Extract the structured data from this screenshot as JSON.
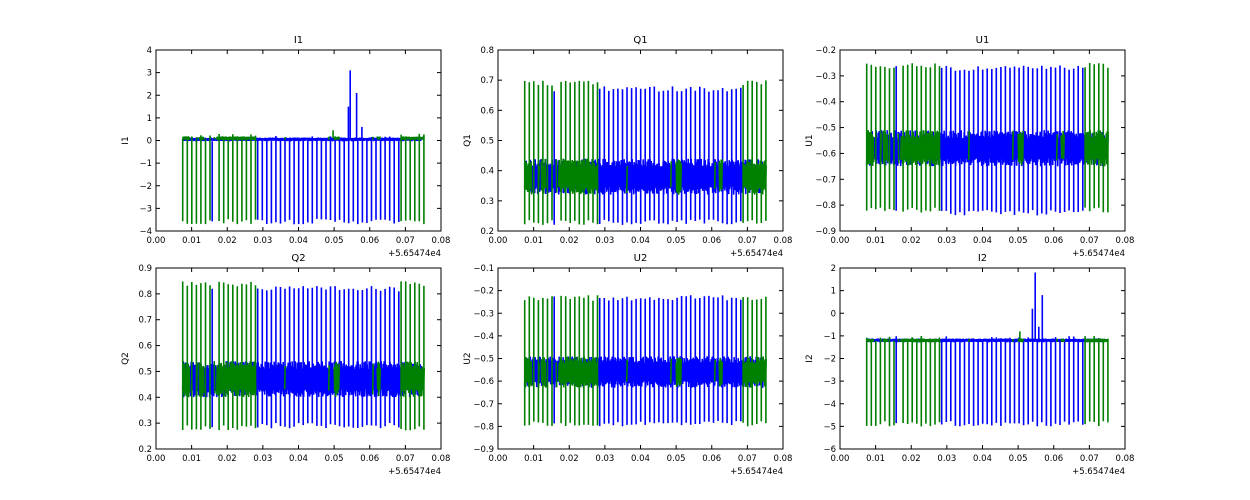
{
  "figure": {
    "background": "#ffffff"
  },
  "chart_data": [
    {
      "type": "line",
      "title": "I1",
      "ylabel": "I1",
      "xlabel": "",
      "x_offset_label": "+5.65474e4",
      "xlim": [
        0.0,
        0.08
      ],
      "ylim": [
        -4,
        4
      ],
      "xticks": [
        "0.00",
        "0.01",
        "0.02",
        "0.03",
        "0.04",
        "0.05",
        "0.06",
        "0.07",
        "0.08"
      ],
      "yticks": [
        "4",
        "3",
        "2",
        "1",
        "0",
        "−1",
        "−2",
        "−3",
        "−4"
      ],
      "ytick_values": [
        4,
        3,
        2,
        1,
        0,
        -1,
        -2,
        -3,
        -4
      ],
      "grid": false,
      "series": [
        {
          "color": "#0000ff",
          "x_range": [
            0.0075,
            0.0745
          ],
          "baseline": 0.05,
          "noise_amp": 0.08,
          "spike_low": -3.7,
          "spike_high": 0.2,
          "extra_peaks": [
            {
              "x": 0.0545,
              "y": 3.1
            },
            {
              "x": 0.054,
              "y": 1.5
            },
            {
              "x": 0.0563,
              "y": 2.1
            },
            {
              "x": 0.0578,
              "y": 0.6
            }
          ]
        },
        {
          "color": "#008000",
          "x_range": [
            0.0075,
            0.0753
          ],
          "baseline": 0.1,
          "noise_amp": 0.08,
          "spike_low": -3.7,
          "spike_high": 0.3,
          "dense_segments": [
            [
              0.0075,
              0.0095
            ],
            [
              0.012,
              0.0135
            ],
            [
              0.017,
              0.028
            ],
            [
              0.05,
              0.0515
            ],
            [
              0.062,
              0.063
            ],
            [
              0.069,
              0.0753
            ]
          ],
          "extra_peaks": [
            {
              "x": 0.0497,
              "y": 0.45
            }
          ]
        }
      ]
    },
    {
      "type": "line",
      "title": "Q1",
      "ylabel": "Q1",
      "xlabel": "",
      "x_offset_label": "+5.65474e4",
      "xlim": [
        0.0,
        0.08
      ],
      "ylim": [
        0.2,
        0.8
      ],
      "xticks": [
        "0.00",
        "0.01",
        "0.02",
        "0.03",
        "0.04",
        "0.05",
        "0.06",
        "0.07",
        "0.08"
      ],
      "yticks": [
        "0.8",
        "0.7",
        "0.6",
        "0.5",
        "0.4",
        "0.3",
        "0.2"
      ],
      "ytick_values": [
        0.8,
        0.7,
        0.6,
        0.5,
        0.4,
        0.3,
        0.2
      ],
      "grid": false,
      "series": [
        {
          "color": "#0000ff",
          "x_range": [
            0.0075,
            0.0745
          ],
          "baseline": 0.38,
          "noise_amp": 0.06,
          "spike_low": 0.22,
          "spike_high": 0.68,
          "extra_peaks": []
        },
        {
          "color": "#008000",
          "x_range": [
            0.0075,
            0.0753
          ],
          "baseline": 0.38,
          "noise_amp": 0.06,
          "spike_low": 0.22,
          "spike_high": 0.7,
          "dense_segments": [
            [
              0.0075,
              0.0095
            ],
            [
              0.012,
              0.0135
            ],
            [
              0.017,
              0.028
            ],
            [
              0.05,
              0.0515
            ],
            [
              0.062,
              0.063
            ],
            [
              0.069,
              0.0753
            ]
          ],
          "extra_peaks": []
        }
      ]
    },
    {
      "type": "line",
      "title": "U1",
      "ylabel": "U1",
      "xlabel": "",
      "x_offset_label": "+5.65474e4",
      "xlim": [
        0.0,
        0.08
      ],
      "ylim": [
        -0.9,
        -0.2
      ],
      "xticks": [
        "0.00",
        "0.01",
        "0.02",
        "0.03",
        "0.04",
        "0.05",
        "0.06",
        "0.07",
        "0.08"
      ],
      "yticks": [
        "−0.2",
        "−0.3",
        "−0.4",
        "−0.5",
        "−0.6",
        "−0.7",
        "−0.8",
        "−0.9"
      ],
      "ytick_values": [
        -0.2,
        -0.3,
        -0.4,
        -0.5,
        -0.6,
        -0.7,
        -0.8,
        -0.9
      ],
      "grid": false,
      "series": [
        {
          "color": "#0000ff",
          "x_range": [
            0.0075,
            0.0745
          ],
          "baseline": -0.58,
          "noise_amp": 0.07,
          "spike_low": -0.84,
          "spike_high": -0.26,
          "extra_peaks": []
        },
        {
          "color": "#008000",
          "x_range": [
            0.0075,
            0.0753
          ],
          "baseline": -0.58,
          "noise_amp": 0.07,
          "spike_low": -0.83,
          "spike_high": -0.25,
          "dense_segments": [
            [
              0.0075,
              0.0095
            ],
            [
              0.012,
              0.0135
            ],
            [
              0.017,
              0.028
            ],
            [
              0.05,
              0.0515
            ],
            [
              0.062,
              0.063
            ],
            [
              0.069,
              0.0753
            ]
          ],
          "extra_peaks": []
        }
      ]
    },
    {
      "type": "line",
      "title": "Q2",
      "ylabel": "Q2",
      "xlabel": "",
      "x_offset_label": "+5.65474e4",
      "xlim": [
        0.0,
        0.08
      ],
      "ylim": [
        0.2,
        0.9
      ],
      "xticks": [
        "0.00",
        "0.01",
        "0.02",
        "0.03",
        "0.04",
        "0.05",
        "0.06",
        "0.07",
        "0.08"
      ],
      "yticks": [
        "0.9",
        "0.8",
        "0.7",
        "0.6",
        "0.5",
        "0.4",
        "0.3",
        "0.2"
      ],
      "ytick_values": [
        0.9,
        0.8,
        0.7,
        0.6,
        0.5,
        0.4,
        0.3,
        0.2
      ],
      "grid": false,
      "series": [
        {
          "color": "#0000ff",
          "x_range": [
            0.0075,
            0.0745
          ],
          "baseline": 0.47,
          "noise_amp": 0.07,
          "spike_low": 0.28,
          "spike_high": 0.83,
          "extra_peaks": []
        },
        {
          "color": "#008000",
          "x_range": [
            0.0075,
            0.0753
          ],
          "baseline": 0.47,
          "noise_amp": 0.07,
          "spike_low": 0.27,
          "spike_high": 0.85,
          "dense_segments": [
            [
              0.0075,
              0.0095
            ],
            [
              0.012,
              0.0135
            ],
            [
              0.017,
              0.028
            ],
            [
              0.05,
              0.0515
            ],
            [
              0.062,
              0.063
            ],
            [
              0.069,
              0.0753
            ]
          ],
          "extra_peaks": []
        }
      ]
    },
    {
      "type": "line",
      "title": "U2",
      "ylabel": "U2",
      "xlabel": "",
      "x_offset_label": "+5.65474e4",
      "xlim": [
        0.0,
        0.08
      ],
      "ylim": [
        -0.9,
        -0.1
      ],
      "xticks": [
        "0.00",
        "0.01",
        "0.02",
        "0.03",
        "0.04",
        "0.05",
        "0.06",
        "0.07",
        "0.08"
      ],
      "yticks": [
        "−0.1",
        "−0.2",
        "−0.3",
        "−0.4",
        "−0.5",
        "−0.6",
        "−0.7",
        "−0.8",
        "−0.9"
      ],
      "ytick_values": [
        -0.1,
        -0.2,
        -0.3,
        -0.4,
        -0.5,
        -0.6,
        -0.7,
        -0.8,
        -0.9
      ],
      "grid": false,
      "series": [
        {
          "color": "#0000ff",
          "x_range": [
            0.0075,
            0.0745
          ],
          "baseline": -0.56,
          "noise_amp": 0.07,
          "spike_low": -0.8,
          "spike_high": -0.22,
          "extra_peaks": []
        },
        {
          "color": "#008000",
          "x_range": [
            0.0075,
            0.0753
          ],
          "baseline": -0.56,
          "noise_amp": 0.07,
          "spike_low": -0.8,
          "spike_high": -0.22,
          "dense_segments": [
            [
              0.0075,
              0.0095
            ],
            [
              0.012,
              0.0135
            ],
            [
              0.017,
              0.028
            ],
            [
              0.05,
              0.0515
            ],
            [
              0.062,
              0.063
            ],
            [
              0.069,
              0.0753
            ]
          ],
          "extra_peaks": []
        }
      ]
    },
    {
      "type": "line",
      "title": "I2",
      "ylabel": "I2",
      "xlabel": "",
      "x_offset_label": "+5.65474e4",
      "xlim": [
        0.0,
        0.08
      ],
      "ylim": [
        -6,
        2
      ],
      "xticks": [
        "0.00",
        "0.01",
        "0.02",
        "0.03",
        "0.04",
        "0.05",
        "0.06",
        "0.07",
        "0.08"
      ],
      "yticks": [
        "2",
        "1",
        "0",
        "−1",
        "−2",
        "−3",
        "−4",
        "−5",
        "−6"
      ],
      "ytick_values": [
        2,
        1,
        0,
        -1,
        -2,
        -3,
        -4,
        -5,
        -6
      ],
      "grid": false,
      "series": [
        {
          "color": "#0000ff",
          "x_range": [
            0.0075,
            0.0745
          ],
          "baseline": -1.2,
          "noise_amp": 0.08,
          "spike_low": -5.0,
          "spike_high": -1.0,
          "extra_peaks": [
            {
              "x": 0.0548,
              "y": 1.8
            },
            {
              "x": 0.054,
              "y": 0.2
            },
            {
              "x": 0.0568,
              "y": 0.8
            },
            {
              "x": 0.0558,
              "y": -0.6
            }
          ]
        },
        {
          "color": "#008000",
          "x_range": [
            0.0075,
            0.0753
          ],
          "baseline": -1.2,
          "noise_amp": 0.08,
          "spike_low": -5.0,
          "spike_high": -1.0,
          "dense_segments": [
            [
              0.0075,
              0.0095
            ],
            [
              0.012,
              0.0135
            ],
            [
              0.017,
              0.028
            ],
            [
              0.05,
              0.0515
            ],
            [
              0.062,
              0.063
            ],
            [
              0.069,
              0.0753
            ]
          ],
          "extra_peaks": [
            {
              "x": 0.0505,
              "y": -0.8
            }
          ]
        }
      ]
    }
  ]
}
